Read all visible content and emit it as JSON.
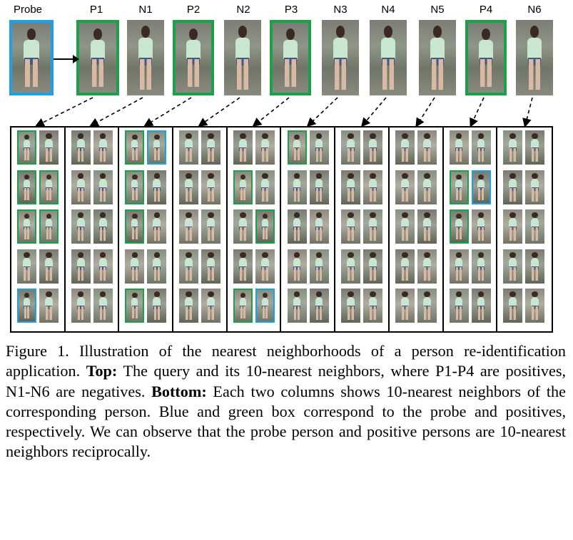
{
  "top_labels": [
    "Probe",
    "P1",
    "N1",
    "P2",
    "N2",
    "P3",
    "N3",
    "N4",
    "N5",
    "P4",
    "N6"
  ],
  "top_image_borders": [
    "blue",
    "green",
    "none",
    "green",
    "none",
    "green",
    "none",
    "none",
    "none",
    "green",
    "none"
  ],
  "bottom_grid": {
    "columns": 10,
    "rows": 5,
    "highlights": [
      [
        "green",
        "none",
        "none",
        "none",
        "green",
        "blue",
        "none",
        "none",
        "none",
        "none",
        "green",
        "none",
        "none",
        "none",
        "none",
        "none",
        "none",
        "none",
        "none",
        "none"
      ],
      [
        "green",
        "green",
        "none",
        "none",
        "green",
        "none",
        "none",
        "none",
        "green",
        "none",
        "none",
        "none",
        "none",
        "none",
        "none",
        "none",
        "green",
        "blue",
        "none",
        "none"
      ],
      [
        "green",
        "green",
        "none",
        "none",
        "green",
        "none",
        "none",
        "none",
        "none",
        "green",
        "none",
        "none",
        "none",
        "none",
        "none",
        "none",
        "green",
        "none",
        "none",
        "none"
      ],
      [
        "none",
        "none",
        "none",
        "none",
        "none",
        "none",
        "none",
        "none",
        "none",
        "none",
        "none",
        "none",
        "none",
        "none",
        "none",
        "none",
        "none",
        "none",
        "none",
        "none"
      ],
      [
        "blue",
        "none",
        "none",
        "none",
        "green",
        "none",
        "none",
        "none",
        "green",
        "blue",
        "none",
        "none",
        "none",
        "none",
        "none",
        "none",
        "none",
        "none",
        "none",
        "none"
      ]
    ]
  },
  "colors": {
    "probe_box": "#1ea0e6",
    "positive_box": "#1aa14a"
  },
  "caption": {
    "figure_label": "Figure 1.",
    "intro": " Illustration of the nearest neighborhoods of a person re-identification application. ",
    "top_label": "Top:",
    "top_text": " The query and its 10-nearest neighbors, where P1-P4 are positives, N1-N6 are negatives. ",
    "bottom_label": "Bottom:",
    "bottom_text": " Each two columns shows 10-nearest neighbors of the corresponding person. Blue and green box correspond to the probe and positives, respectively. We can observe that the probe person and positive persons are 10-nearest neighbors reciprocally."
  }
}
